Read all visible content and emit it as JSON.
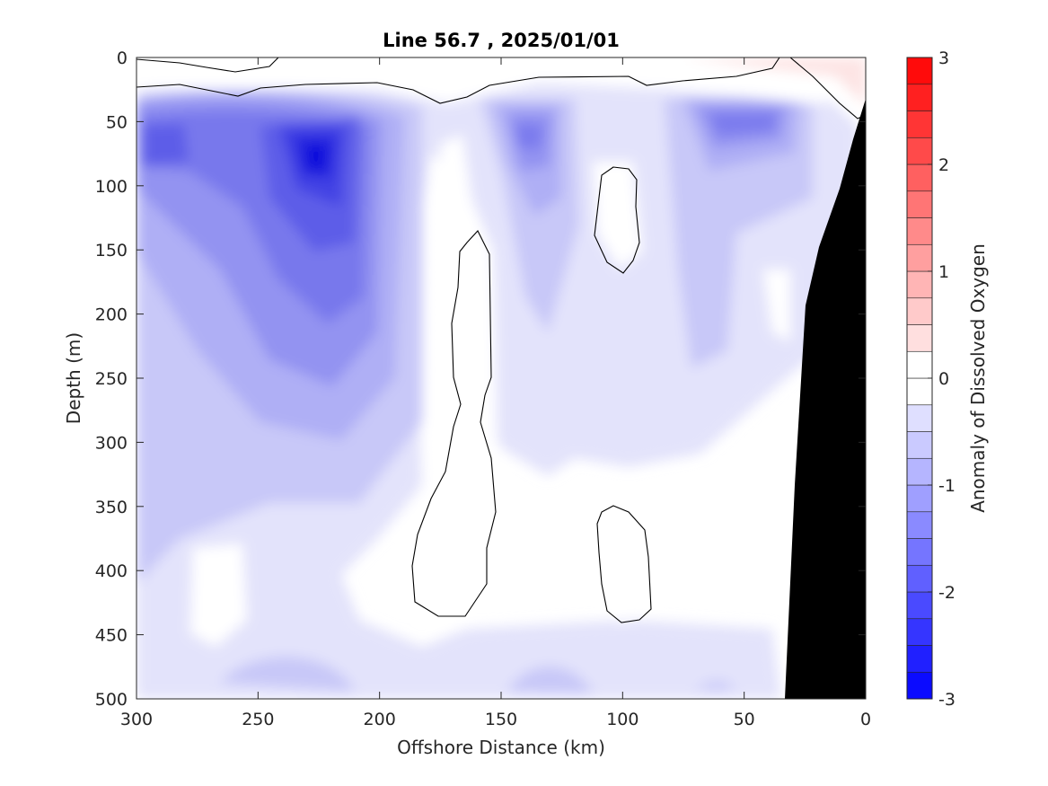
{
  "chart_data": {
    "type": "contour",
    "title": "Line 56.7 , 2025/01/01",
    "xlabel": "Offshore Distance (km)",
    "ylabel": "Depth (m)",
    "xlim": [
      300,
      0
    ],
    "ylim": [
      0,
      500
    ],
    "x_reversed": true,
    "y_reversed": true,
    "x_ticks": [
      "300",
      "250",
      "200",
      "150",
      "100",
      "50",
      "0"
    ],
    "y_ticks": [
      "0",
      "50",
      "100",
      "150",
      "200",
      "250",
      "300",
      "350",
      "400",
      "450",
      "500"
    ],
    "colorbar": {
      "label": "Anomaly of Dissolved Oxygen",
      "range": [
        -3,
        3
      ],
      "step": 0.25,
      "ticks": [
        "3",
        "2",
        "1",
        "0",
        "-1",
        "-2",
        "-3"
      ],
      "colormap": "blue-white-red"
    },
    "bathymetry_color": "#000000",
    "features": [
      {
        "kind": "minimum",
        "x_km": 225,
        "depth_m": 85,
        "value": -2.25
      },
      {
        "kind": "minimum",
        "x_km": 292,
        "depth_m": 65,
        "value": -1.75
      },
      {
        "kind": "minimum",
        "x_km": 135,
        "depth_m": 60,
        "value": -1.25
      },
      {
        "kind": "minimum",
        "x_km": 55,
        "depth_m": 50,
        "value": -1.25
      },
      {
        "kind": "zero-contour",
        "x_km": 163,
        "depth_m_range": [
          135,
          435
        ]
      },
      {
        "kind": "zero-contour",
        "x_km": 103,
        "depth_m_range": [
          85,
          168
        ]
      },
      {
        "kind": "zero-contour",
        "x_km": 104,
        "depth_m_range": [
          348,
          440
        ]
      },
      {
        "kind": "positive-patch",
        "x_km": 10,
        "depth_m": 10,
        "value": 0.25
      }
    ]
  }
}
